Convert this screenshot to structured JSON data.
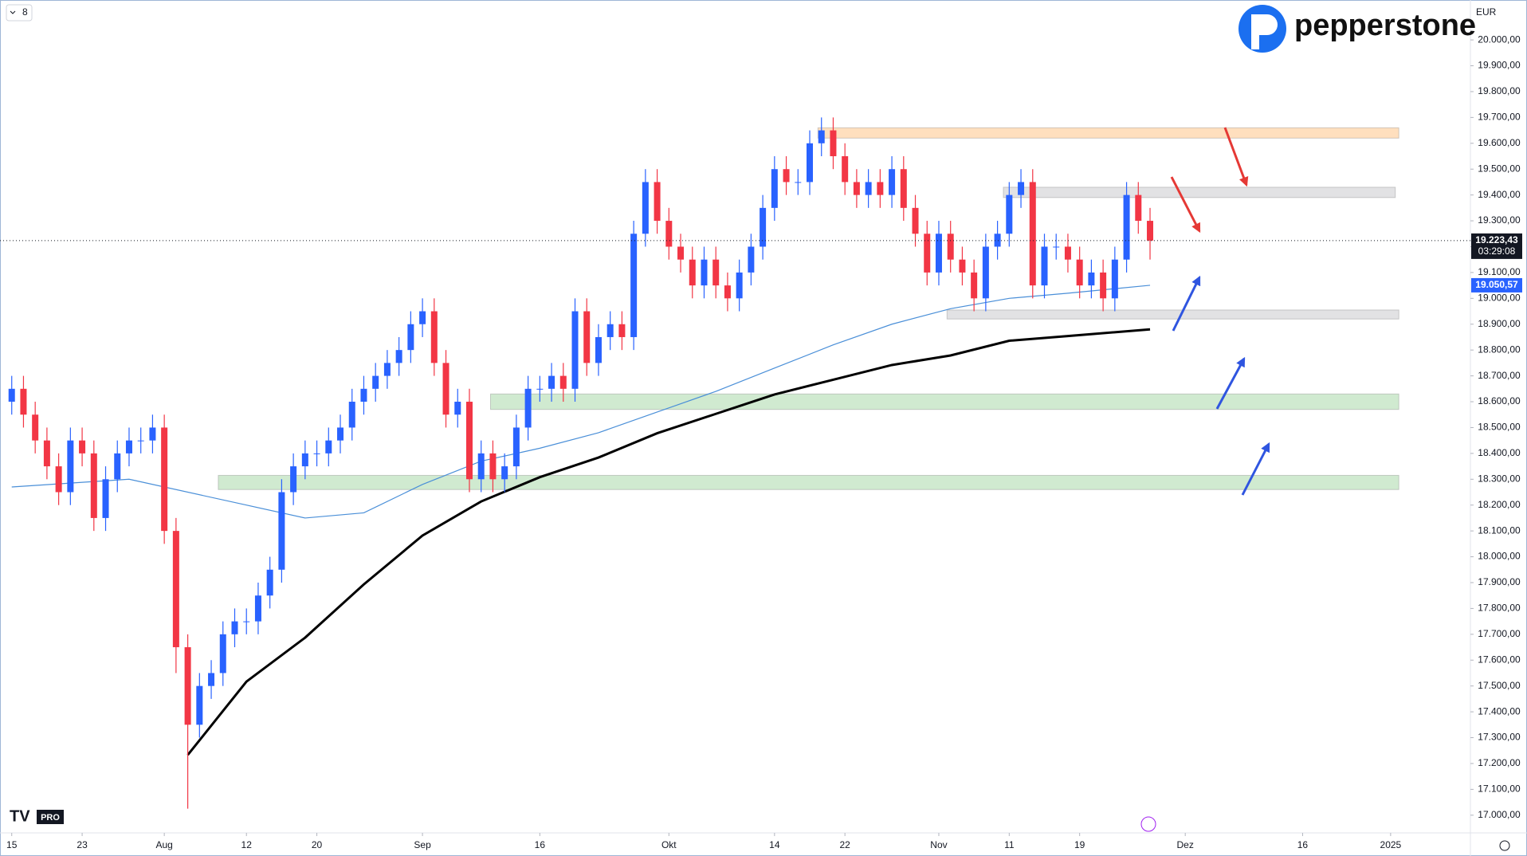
{
  "ui": {
    "interval": "8",
    "currency": "EUR",
    "brand": "pepperstone",
    "badge": "PRO"
  },
  "chart_data": {
    "type": "candlestick",
    "xlim": [
      -1,
      124.3
    ],
    "ylim": [
      16931.5,
      20154.5
    ],
    "up_color": "#2962ff",
    "down_color": "#f23645",
    "xticks": [
      {
        "value": 0,
        "label": "15"
      },
      {
        "value": 6,
        "label": "23"
      },
      {
        "value": 13,
        "label": "Aug"
      },
      {
        "value": 20,
        "label": "12"
      },
      {
        "value": 26,
        "label": "20"
      },
      {
        "value": 35,
        "label": "Sep"
      },
      {
        "value": 45,
        "label": "16"
      },
      {
        "value": 56,
        "label": "Okt"
      },
      {
        "value": 65,
        "label": "14"
      },
      {
        "value": 71,
        "label": "22"
      },
      {
        "value": 79,
        "label": "Nov"
      },
      {
        "value": 85,
        "label": "11"
      },
      {
        "value": 91,
        "label": "19"
      },
      {
        "value": 100,
        "label": "Dez"
      },
      {
        "value": 110,
        "label": "16"
      },
      {
        "value": 117.5,
        "label": "2025"
      }
    ],
    "yticks": [
      {
        "value": 17000,
        "label": "17.000,00"
      },
      {
        "value": 17100,
        "label": "17.100,00"
      },
      {
        "value": 17200,
        "label": "17.200,00"
      },
      {
        "value": 17300,
        "label": "17.300,00"
      },
      {
        "value": 17400,
        "label": "17.400,00"
      },
      {
        "value": 17500,
        "label": "17.500,00"
      },
      {
        "value": 17600,
        "label": "17.600,00"
      },
      {
        "value": 17700,
        "label": "17.700,00"
      },
      {
        "value": 17800,
        "label": "17.800,00"
      },
      {
        "value": 17900,
        "label": "17.900,00"
      },
      {
        "value": 18000,
        "label": "18.000,00"
      },
      {
        "value": 18100,
        "label": "18.100,00"
      },
      {
        "value": 18200,
        "label": "18.200,00"
      },
      {
        "value": 18300,
        "label": "18.300,00"
      },
      {
        "value": 18400,
        "label": "18.400,00"
      },
      {
        "value": 18500,
        "label": "18.500,00"
      },
      {
        "value": 18600,
        "label": "18.600,00"
      },
      {
        "value": 18700,
        "label": "18.700,00"
      },
      {
        "value": 18800,
        "label": "18.800,00"
      },
      {
        "value": 18900,
        "label": "18.900,00"
      },
      {
        "value": 19000,
        "label": "19.000,00"
      },
      {
        "value": 19100,
        "label": "19.100,00"
      },
      {
        "value": 19200,
        "label": "19.200,00"
      },
      {
        "value": 19300,
        "label": "19.300,00"
      },
      {
        "value": 19400,
        "label": "19.400,00"
      },
      {
        "value": 19500,
        "label": "19.500,00"
      },
      {
        "value": 19600,
        "label": "19.600,00"
      },
      {
        "value": 19700,
        "label": "19.700,00"
      },
      {
        "value": 19800,
        "label": "19.800,00"
      },
      {
        "value": 19900,
        "label": "19.900,00"
      },
      {
        "value": 20000,
        "label": "20.000,00"
      }
    ],
    "open": [
      18600,
      18650,
      18550,
      18450,
      18350,
      18250,
      18450,
      18400,
      18150,
      18300,
      18400,
      18450,
      18450,
      18500,
      18100,
      17650,
      17350,
      17500,
      17550,
      17700,
      17750,
      17750,
      17850,
      17950,
      18250,
      18350,
      18400,
      18400,
      18450,
      18500,
      18600,
      18650,
      18700,
      18750,
      18800,
      18900,
      18950,
      18750,
      18550,
      18600,
      18300,
      18400,
      18300,
      18350,
      18500,
      18650,
      18650,
      18700,
      18650,
      18950,
      18750,
      18850,
      18900,
      18850,
      19250,
      19450,
      19300,
      19200,
      19150,
      19050,
      19150,
      19050,
      19000,
      19100,
      19200,
      19350,
      19500,
      19450,
      19450,
      19600,
      19650,
      19550,
      19450,
      19400,
      19450,
      19400,
      19500,
      19350,
      19250,
      19100,
      19250,
      19150,
      19100,
      19000,
      19200,
      19250,
      19400,
      19450,
      19050,
      19200,
      19200,
      19150,
      19050,
      19100,
      19000,
      19150,
      19400,
      19300
    ],
    "high": [
      18700,
      18700,
      18600,
      18500,
      18400,
      18500,
      18500,
      18450,
      18350,
      18450,
      18500,
      18500,
      18550,
      18550,
      18150,
      17700,
      17550,
      17600,
      17750,
      17800,
      17800,
      17900,
      18000,
      18300,
      18400,
      18450,
      18450,
      18500,
      18550,
      18650,
      18700,
      18750,
      18800,
      18850,
      18950,
      19000,
      19000,
      18800,
      18650,
      18650,
      18450,
      18450,
      18400,
      18550,
      18700,
      18700,
      18750,
      18750,
      19000,
      19000,
      18900,
      18950,
      18950,
      19300,
      19500,
      19500,
      19350,
      19250,
      19200,
      19200,
      19200,
      19100,
      19150,
      19250,
      19400,
      19550,
      19550,
      19500,
      19650,
      19700,
      19700,
      19600,
      19500,
      19500,
      19500,
      19550,
      19550,
      19400,
      19300,
      19300,
      19300,
      19200,
      19150,
      19250,
      19300,
      19450,
      19500,
      19500,
      19250,
      19250,
      19250,
      19200,
      19150,
      19150,
      19200,
      19450,
      19450,
      19350
    ],
    "low": [
      18550,
      18500,
      18400,
      18300,
      18200,
      18200,
      18350,
      18100,
      18100,
      18250,
      18350,
      18400,
      18400,
      18050,
      17550,
      17025,
      17300,
      17450,
      17500,
      17650,
      17700,
      17700,
      17800,
      17900,
      18200,
      18300,
      18350,
      18350,
      18400,
      18450,
      18550,
      18600,
      18650,
      18700,
      18750,
      18850,
      18700,
      18500,
      18500,
      18250,
      18250,
      18250,
      18250,
      18300,
      18450,
      18600,
      18600,
      18600,
      18600,
      18700,
      18700,
      18800,
      18800,
      18800,
      19200,
      19250,
      19150,
      19100,
      19000,
      19000,
      19000,
      18950,
      18950,
      19050,
      19150,
      19300,
      19400,
      19400,
      19400,
      19550,
      19500,
      19400,
      19350,
      19350,
      19350,
      19350,
      19300,
      19200,
      19050,
      19050,
      19100,
      19050,
      18950,
      18950,
      19150,
      19200,
      19350,
      19000,
      19000,
      19150,
      19100,
      19000,
      19000,
      18950,
      18950,
      19100,
      19250,
      19150
    ],
    "close": [
      18650,
      18550,
      18450,
      18350,
      18250,
      18450,
      18400,
      18150,
      18300,
      18400,
      18450,
      18450,
      18500,
      18100,
      17650,
      17350,
      17500,
      17550,
      17700,
      17750,
      17750,
      17850,
      17950,
      18250,
      18350,
      18400,
      18400,
      18450,
      18500,
      18600,
      18650,
      18700,
      18750,
      18800,
      18900,
      18950,
      18750,
      18550,
      18600,
      18300,
      18400,
      18300,
      18350,
      18500,
      18650,
      18650,
      18700,
      18650,
      18950,
      18750,
      18850,
      18900,
      18850,
      19250,
      19450,
      19300,
      19200,
      19150,
      19050,
      19150,
      19050,
      19000,
      19100,
      19200,
      19350,
      19500,
      19450,
      19450,
      19600,
      19650,
      19550,
      19450,
      19400,
      19450,
      19400,
      19500,
      19350,
      19250,
      19100,
      19250,
      19150,
      19100,
      19000,
      19200,
      19250,
      19400,
      19450,
      19050,
      19200,
      19200,
      19150,
      19050,
      19100,
      19000,
      19150,
      19400,
      19300,
      19223.43
    ],
    "lines": [
      {
        "color": "#000000",
        "width": 3,
        "x": [
          15,
          20,
          25,
          30,
          35,
          40,
          45,
          50,
          55,
          60,
          65,
          70,
          75,
          80,
          85,
          90,
          97
        ],
        "values": [
          17233,
          17517,
          17687,
          17893,
          18082,
          18214,
          18308,
          18384,
          18478,
          18553,
          18628,
          18685,
          18742,
          18779,
          18836,
          18854,
          18880
        ]
      },
      {
        "color": "#4a8fd8",
        "width": 1.2,
        "x": [
          0,
          10,
          20,
          25,
          30,
          35,
          40,
          45,
          50,
          55,
          60,
          65,
          70,
          75,
          80,
          85,
          90,
          97
        ],
        "values": [
          18270,
          18300,
          18200,
          18150,
          18170,
          18280,
          18370,
          18420,
          18480,
          18560,
          18640,
          18730,
          18820,
          18900,
          18960,
          19000,
          19020,
          19050.57
        ]
      }
    ],
    "zones": [
      {
        "color": "rgba(255,183,110,0.45)",
        "xlim": [
          68.7,
          118.2
        ],
        "ylim": [
          19620,
          19660
        ]
      },
      {
        "color": "rgba(190,190,195,0.45)",
        "xlim": [
          84.5,
          117.9
        ],
        "ylim": [
          19390,
          19430
        ]
      },
      {
        "color": "rgba(190,190,195,0.45)",
        "xlim": [
          79.7,
          118.2
        ],
        "ylim": [
          18920,
          18955
        ]
      },
      {
        "color": "rgba(120,195,120,0.35)",
        "xlim": [
          40.8,
          118.2
        ],
        "ylim": [
          18570,
          18630
        ]
      },
      {
        "color": "rgba(120,195,120,0.35)",
        "xlim": [
          17.6,
          118.2
        ],
        "ylim": [
          18260,
          18315
        ]
      }
    ],
    "last_price": {
      "value": 19223.43,
      "label": "19.223,43"
    },
    "countdown": "03:29:08",
    "ma_label": {
      "value": 19050.57,
      "label": "19.050,57"
    }
  }
}
